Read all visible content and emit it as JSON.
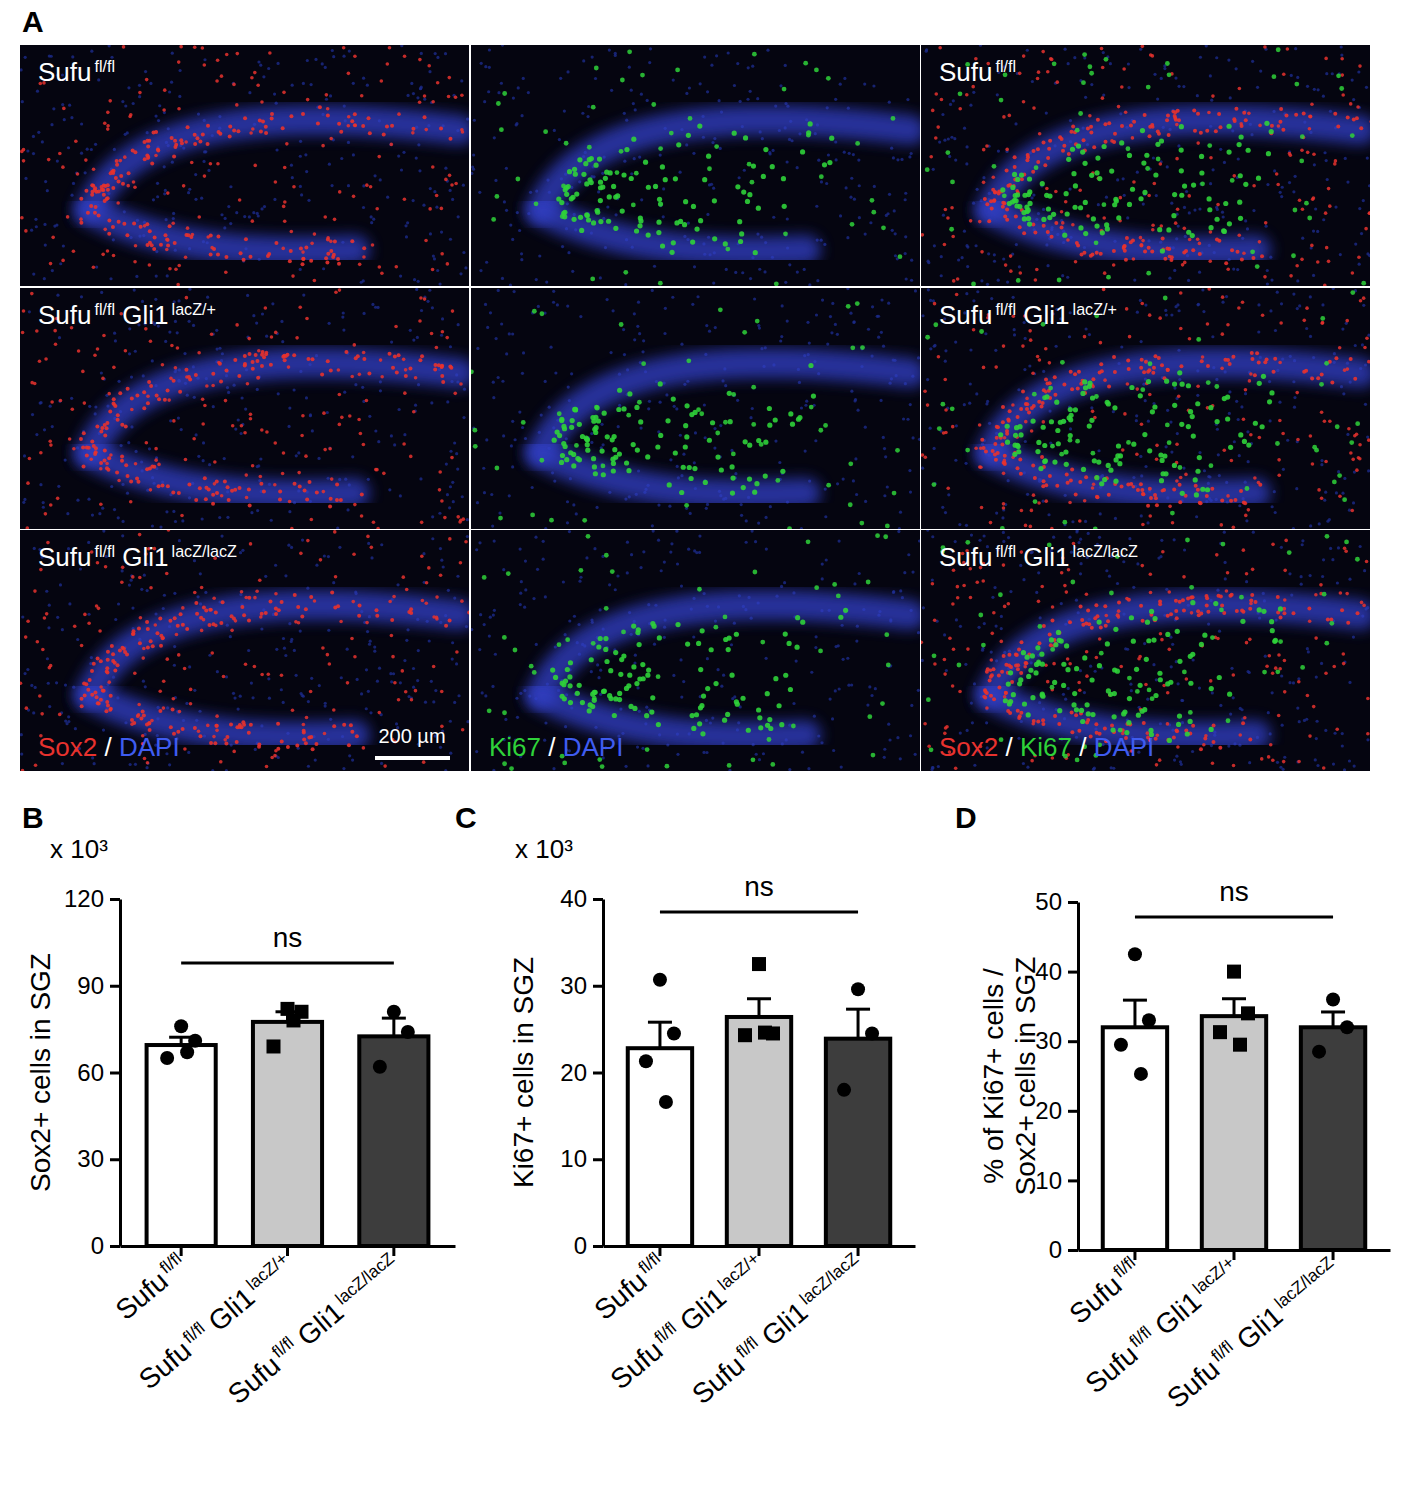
{
  "image_panel": {
    "label": "A",
    "row_labels": [
      "Sufu fl/fl",
      "Sufu fl/fl Gli1 lacZ/+",
      "Sufu fl/fl Gli1 lacZ/lacZ"
    ],
    "channel_labels": [
      [
        {
          "text": "Sox2",
          "color": "#e8322e"
        },
        {
          "text": " / ",
          "color": "#ffffff"
        },
        {
          "text": "DAPI",
          "color": "#3f5cf0"
        }
      ],
      [
        {
          "text": "Ki67",
          "color": "#2fd23a"
        },
        {
          "text": " / ",
          "color": "#ffffff"
        },
        {
          "text": "DAPI",
          "color": "#3f5cf0"
        }
      ],
      [
        {
          "text": "Sox2",
          "color": "#e8322e"
        },
        {
          "text": " / ",
          "color": "#ffffff"
        },
        {
          "text": "Ki67",
          "color": "#2fd23a"
        },
        {
          "text": " / ",
          "color": "#ffffff"
        },
        {
          "text": "DAPI",
          "color": "#3f5cf0"
        }
      ]
    ],
    "scale_bar": "200 µm"
  },
  "chart_data": [
    {
      "type": "bar",
      "panel": "B",
      "scale_label": "x 10³",
      "ylabel": [
        "Sox2+ cells in SGZ"
      ],
      "categories": [
        "Sufu fl/fl",
        "Sufu fl/fl Gli1 lacZ/+",
        "Sufu fl/fl Gli1 lacZ/lacZ"
      ],
      "values": [
        69.5,
        77.5,
        72.5
      ],
      "errors": [
        2.7,
        3.5,
        6.3
      ],
      "points": [
        [
          76,
          71,
          65,
          67
        ],
        [
          82,
          81,
          69,
          78
        ],
        [
          81,
          74,
          62
        ]
      ],
      "markers": [
        "circle",
        "square",
        "circle"
      ],
      "colors": [
        "#ffffff",
        "#c8c8c8",
        "#3d3d3d"
      ],
      "ylim": [
        0,
        120
      ],
      "yticks": [
        0,
        30,
        60,
        90,
        120
      ],
      "significance": "ns"
    },
    {
      "type": "bar",
      "panel": "C",
      "scale_label": "x 10³",
      "ylabel": [
        "Ki67+ cells in SGZ"
      ],
      "categories": [
        "Sufu fl/fl",
        "Sufu fl/fl Gli1 lacZ/+",
        "Sufu fl/fl Gli1 lacZ/lacZ"
      ],
      "values": [
        22.8,
        26.4,
        23.9
      ],
      "errors": [
        3.0,
        2.1,
        3.4
      ],
      "points": [
        [
          30.7,
          24.5,
          21.3,
          16.6
        ],
        [
          32.5,
          24.5,
          24.3,
          24.6
        ],
        [
          29.6,
          24.5,
          18
        ]
      ],
      "markers": [
        "circle",
        "square",
        "circle"
      ],
      "colors": [
        "#ffffff",
        "#c8c8c8",
        "#3d3d3d"
      ],
      "ylim": [
        0,
        40
      ],
      "yticks": [
        0,
        10,
        20,
        30,
        40
      ],
      "significance": "ns"
    },
    {
      "type": "bar",
      "panel": "D",
      "ylabel": [
        "% of Ki67+ cells /",
        "Sox2+ cells in SGZ"
      ],
      "categories": [
        "Sufu fl/fl",
        "Sufu fl/fl Gli1 lacZ/+",
        "Sufu fl/fl Gli1 lacZ/lacZ"
      ],
      "values": [
        32,
        33.6,
        32
      ],
      "errors": [
        3.9,
        2.5,
        2.2
      ],
      "points": [
        [
          42.5,
          33,
          29.5,
          25.3
        ],
        [
          40,
          34,
          31.3,
          29.5
        ],
        [
          36,
          32,
          28.5
        ]
      ],
      "markers": [
        "circle",
        "square",
        "circle"
      ],
      "colors": [
        "#ffffff",
        "#c8c8c8",
        "#3d3d3d"
      ],
      "ylim": [
        0,
        50
      ],
      "yticks": [
        0,
        10,
        20,
        30,
        40,
        50
      ],
      "significance": "ns"
    }
  ]
}
